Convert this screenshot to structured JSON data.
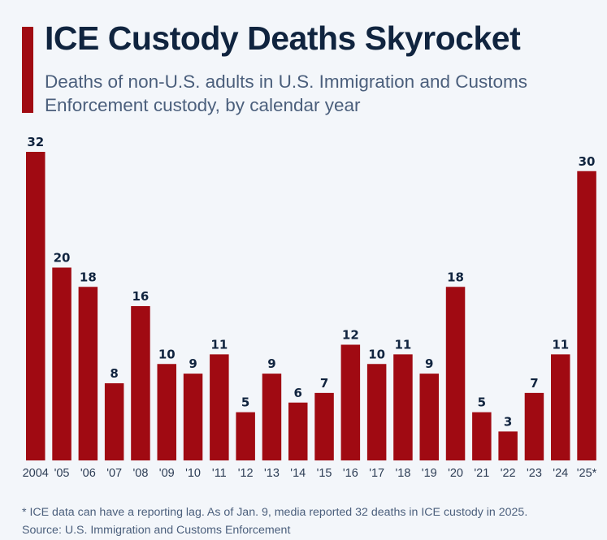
{
  "chart_data": {
    "type": "bar",
    "title": "ICE Custody Deaths Skyrocket",
    "subtitle": "Deaths of non-U.S. adults in U.S. Immigration and Customs Enforcement custody, by calendar year",
    "xlabel": "",
    "ylabel": "",
    "ylim": [
      0,
      32
    ],
    "grid": false,
    "categories": [
      "2004",
      "'05",
      "'06",
      "'07",
      "'08",
      "'09",
      "'10",
      "'11",
      "'12",
      "'13",
      "'14",
      "'15",
      "'16",
      "'17",
      "'18",
      "'19",
      "'20",
      "'21",
      "'22",
      "'23",
      "'24",
      "'25*"
    ],
    "values": [
      32,
      20,
      18,
      8,
      16,
      10,
      9,
      11,
      5,
      9,
      6,
      7,
      12,
      10,
      11,
      9,
      18,
      5,
      3,
      7,
      11,
      30
    ],
    "bar_color": "#a00a12",
    "footnote": "* ICE data can have a reporting lag. As of Jan. 9, media reported 32 deaths in ICE custody in 2025.",
    "source": "Source: U.S. Immigration and Customs Enforcement"
  }
}
